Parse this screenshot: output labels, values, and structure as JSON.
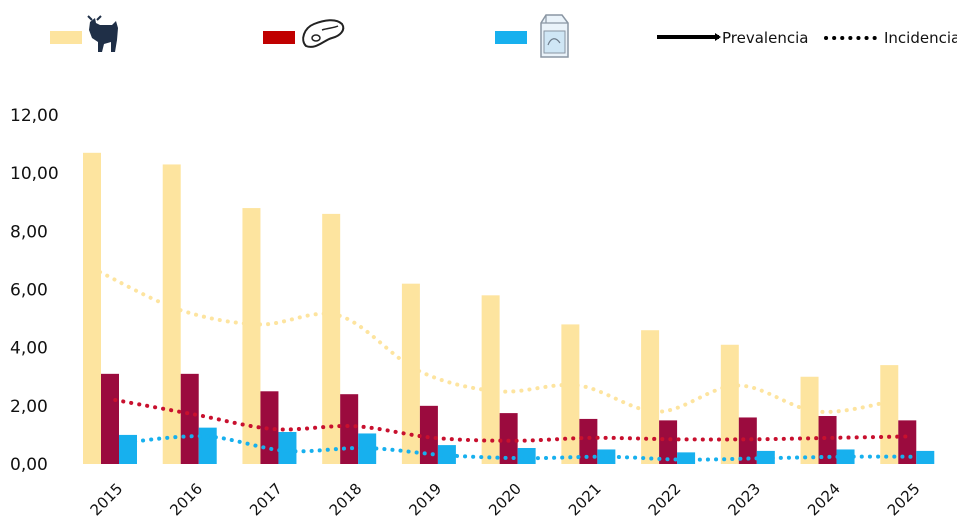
{
  "chart_data": {
    "type": "bar",
    "title": "",
    "xlabel": "",
    "ylabel": "",
    "ylim": [
      0,
      12
    ],
    "y_ticks": [
      "0,00",
      "2,00",
      "4,00",
      "6,00",
      "8,00",
      "10,00",
      "12,00"
    ],
    "categories": [
      "2015",
      "2016",
      "2017",
      "2018",
      "2019",
      "2020",
      "2021",
      "2022",
      "2023",
      "2024",
      "2025"
    ],
    "grid": false,
    "legend_position": "top",
    "series": [
      {
        "icon": "bull-icon",
        "kind": "bar",
        "measure": "Prevalencia",
        "color": "#FDE49F",
        "values": [
          10.7,
          10.3,
          8.8,
          8.6,
          6.2,
          5.8,
          4.8,
          4.6,
          4.1,
          3.0,
          3.4
        ]
      },
      {
        "icon": "meat-cut-icon",
        "kind": "bar",
        "measure": "Prevalencia",
        "color": "#9B0B3E",
        "values": [
          3.1,
          3.1,
          2.5,
          2.4,
          2.0,
          1.75,
          1.55,
          1.5,
          1.6,
          1.65,
          1.5
        ]
      },
      {
        "icon": "milk-carton-icon",
        "kind": "bar",
        "measure": "Prevalencia",
        "color": "#17B0EE",
        "values": [
          1.0,
          1.25,
          1.1,
          1.05,
          0.65,
          0.55,
          0.5,
          0.4,
          0.45,
          0.5,
          0.45
        ]
      },
      {
        "icon": "bull-icon",
        "kind": "dotted-line",
        "measure": "Incidencia",
        "color": "#FDE49F",
        "values": [
          6.6,
          5.3,
          4.8,
          5.1,
          3.2,
          2.5,
          2.7,
          1.8,
          2.7,
          1.8,
          2.2
        ]
      },
      {
        "icon": "meat-cut-icon",
        "kind": "dotted-line",
        "measure": "Incidencia",
        "color": "#C8102E",
        "values": [
          2.2,
          1.7,
          1.2,
          1.3,
          0.9,
          0.8,
          0.9,
          0.85,
          0.85,
          0.9,
          0.95
        ]
      },
      {
        "icon": "milk-carton-icon",
        "kind": "dotted-line",
        "measure": "Incidencia",
        "color": "#17B0EE",
        "values": [
          0.75,
          0.95,
          0.45,
          0.55,
          0.3,
          0.2,
          0.25,
          0.15,
          0.2,
          0.25,
          0.25
        ]
      }
    ],
    "legend": {
      "items": [
        {
          "icon": "bull-icon",
          "color": "#FDE49F"
        },
        {
          "icon": "meat-cut-icon",
          "color": "#C00000"
        },
        {
          "icon": "milk-carton-icon",
          "color": "#17B0EE"
        }
      ],
      "line_styles": [
        {
          "label": "Prevalencia",
          "style": "solid"
        },
        {
          "label": "Incidencia",
          "style": "dotted"
        }
      ]
    }
  }
}
